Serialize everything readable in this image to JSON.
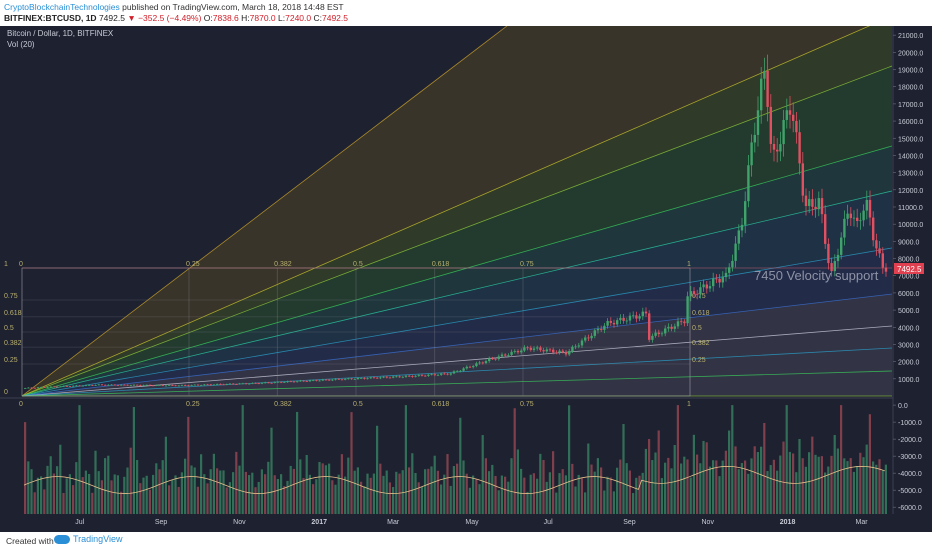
{
  "header": {
    "author": "CryptoBlockchainTechnologies",
    "published": "published on TradingView.com, March 18, 2018 14:48 EST",
    "symbol": "BITFINEX:BTCUSD, 1D",
    "last": "7492.5",
    "change": "▼ −352.5 (−4.49%)",
    "open_label": "O:",
    "open": "7838.6",
    "high_label": "H:",
    "high": "7870.0",
    "low_label": "L:",
    "low": "7240.0",
    "close_label": "C:",
    "close": "7492.5"
  },
  "legend": {
    "title": "Bitcoin / Dollar, 1D, BITFINEX",
    "volume": "Vol (20)"
  },
  "annotation": "7450 Velocity support",
  "price_badge": "7492.5",
  "footer": {
    "created_with": "Created with",
    "brand": "TradingView"
  },
  "colors": {
    "background": "#1e2130",
    "up": "#3fa36b",
    "down": "#e05060",
    "price_badge": "#e0404f",
    "author": "#2a8fd6"
  },
  "chart_data": {
    "type": "candlestick",
    "title": "Bitcoin / Dollar, 1D, BITFINEX",
    "price_axis": {
      "ticks": [
        1000,
        2000,
        3000,
        4000,
        5000,
        6000,
        7000,
        8000,
        9000,
        10000,
        11000,
        12000,
        13000,
        14000,
        15000,
        16000,
        17000,
        18000,
        19000,
        20000,
        21000
      ],
      "tick_labels": [
        "1000.0",
        "2000.0",
        "3000.0",
        "4000.0",
        "5000.0",
        "6000.0",
        "7000.0",
        "8000.0",
        "9000.0",
        "10000.0",
        "11000.0",
        "12000.0",
        "13000.0",
        "14000.0",
        "15000.0",
        "16000.0",
        "17000.0",
        "18000.0",
        "19000.0",
        "20000.0",
        "21000.0"
      ],
      "range": [
        0,
        21300
      ]
    },
    "volume_axis": {
      "ticks": [
        0,
        -1000,
        -2000,
        -3000,
        -4000,
        -5000,
        -6000
      ],
      "tick_labels": [
        "0.0",
        "-1000.0",
        "-2000.0",
        "-3000.0",
        "-4000.0",
        "-5000.0",
        "-6000.0"
      ],
      "range": [
        -6400,
        300
      ]
    },
    "time_axis": {
      "labels": [
        "Jul",
        "Sep",
        "Nov",
        "2017",
        "Mar",
        "May",
        "Jul",
        "Sep",
        "Nov",
        "2018",
        "Mar"
      ],
      "bold": [
        "2017",
        "2018"
      ]
    },
    "gann_fan_levels_top": [
      "0",
      "0.25",
      "0.382",
      "0.5",
      "0.618",
      "0.75",
      "1"
    ],
    "gann_fan_levels_bottom": [
      "0",
      "0.25",
      "0.382",
      "0.5",
      "0.618",
      "0.75",
      "1"
    ],
    "gann_fan_levels_right": [
      "0.75",
      "0.618",
      "0.5",
      "0.382",
      "0.25"
    ],
    "gann_fan_levels_left": [
      "1",
      "0.75",
      "0.618",
      "0.5",
      "0.382",
      "0.25",
      "0"
    ],
    "price_path": [
      [
        "2016-05",
        450
      ],
      [
        "2016-07",
        650
      ],
      [
        "2016-09",
        610
      ],
      [
        "2016-11",
        740
      ],
      [
        "2017-01",
        960
      ],
      [
        "2017-03",
        1150
      ],
      [
        "2017-04",
        1300
      ],
      [
        "2017-05",
        2100
      ],
      [
        "2017-06",
        2800
      ],
      [
        "2017-07",
        2500
      ],
      [
        "2017-07-20",
        2800
      ],
      [
        "2017-08",
        4200
      ],
      [
        "2017-09",
        4800
      ],
      [
        "2017-09-15",
        3300
      ],
      [
        "2017-10",
        4400
      ],
      [
        "2017-10-15",
        5700
      ],
      [
        "2017-11",
        7000
      ],
      [
        "2017-11-12",
        5900
      ],
      [
        "2017-11-28",
        9800
      ],
      [
        "2017-12-07",
        15000
      ],
      [
        "2017-12-17",
        19300
      ],
      [
        "2017-12-22",
        13500
      ],
      [
        "2018-01-06",
        17100
      ],
      [
        "2018-01-17",
        11000
      ],
      [
        "2018-01-28",
        11300
      ],
      [
        "2018-02-06",
        6900
      ],
      [
        "2018-02-20",
        11000
      ],
      [
        "2018-02-26",
        9800
      ],
      [
        "2018-03-05",
        11400
      ],
      [
        "2018-03-12",
        9000
      ],
      [
        "2018-03-18",
        7492.5
      ]
    ]
  }
}
